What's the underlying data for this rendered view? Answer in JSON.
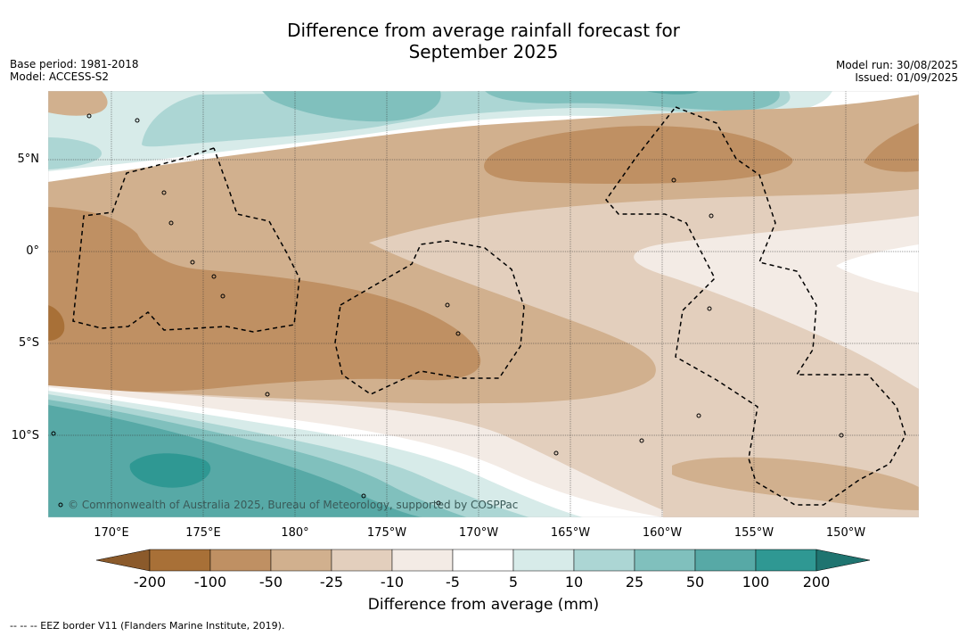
{
  "title_line1": "Difference from average rainfall forecast for",
  "title_line2": "September 2025",
  "base_period": "Base period: 1981-2018",
  "model": "Model: ACCESS-S2",
  "model_run": "Model run: 30/08/2025",
  "issued": "Issued: 01/09/2025",
  "lat_labels": [
    "5°N",
    "0°",
    "5°S",
    "10°S"
  ],
  "lon_labels": [
    "170°E",
    "175°E",
    "180°",
    "175°W",
    "170°W",
    "165°W",
    "160°W",
    "155°W",
    "150°W"
  ],
  "copyright": "© Commonwealth of Australia 2025, Bureau of Meteorology, supported by COSPPac",
  "colorbar": {
    "label": "Difference from average (mm)",
    "ticks": [
      "-200",
      "-100",
      "-50",
      "-25",
      "-10",
      "-5",
      "5",
      "10",
      "25",
      "50",
      "100",
      "200"
    ],
    "colors": [
      "#a87037",
      "#bf9063",
      "#d1b08e",
      "#e3cfbd",
      "#f3ebe5",
      "#ffffff",
      "#d7ebe9",
      "#acd6d4",
      "#80c0bd",
      "#57a9a6",
      "#2f9893"
    ],
    "under_color": "#8b5a2b",
    "over_color": "#1f7470"
  },
  "legend_note": "--  --  -- EEZ border V11 (Flanders Marine Institute, 2019)."
}
